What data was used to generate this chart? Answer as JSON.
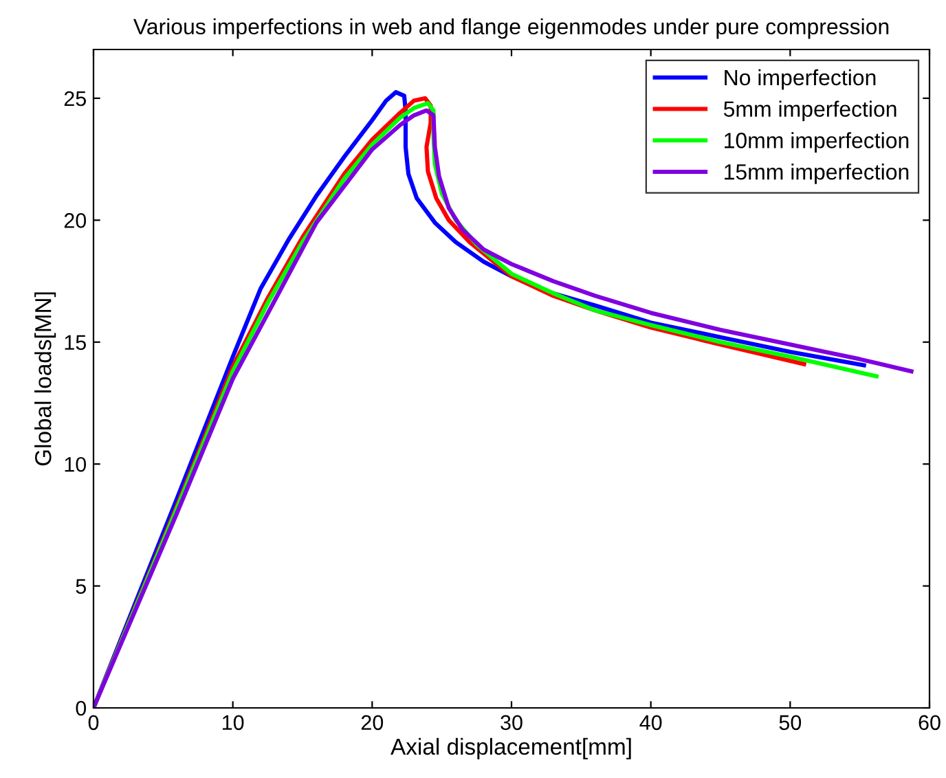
{
  "chart_data": {
    "type": "line",
    "title": "Various imperfections in web and flange eigenmodes under pure compression",
    "xlabel": "Axial displacement[mm]",
    "ylabel": "Global loads[MN]",
    "xlim": [
      0,
      60
    ],
    "ylim": [
      0,
      27
    ],
    "xticks": [
      0,
      10,
      20,
      30,
      40,
      50,
      60
    ],
    "yticks": [
      0,
      5,
      10,
      15,
      20,
      25
    ],
    "legend": "top right",
    "grid": false,
    "series": [
      {
        "name": "No imperfection",
        "color": "#0000ff",
        "x": [
          0,
          6,
          10,
          12,
          14,
          16,
          18,
          20,
          21,
          21.7,
          22.3,
          22.4,
          22.4,
          22.6,
          23.2,
          24.5,
          26,
          28,
          30,
          33,
          36,
          40,
          45,
          50,
          55.3
        ],
        "values": [
          0,
          8.6,
          14.4,
          17.2,
          19.2,
          21.0,
          22.6,
          24.1,
          24.9,
          25.25,
          25.1,
          24.5,
          23,
          21.9,
          20.9,
          19.9,
          19.1,
          18.3,
          17.7,
          17.0,
          16.5,
          15.8,
          15.2,
          14.6,
          14.05
        ]
      },
      {
        "name": "5mm imperfection",
        "color": "#ff0000",
        "x": [
          0,
          6,
          10,
          12.5,
          15,
          18,
          20,
          22,
          23,
          23.8,
          24.2,
          24.2,
          23.9,
          24.0,
          24.6,
          25.5,
          27,
          30,
          33,
          36,
          40,
          45,
          51
        ],
        "values": [
          0,
          8.3,
          14.0,
          16.8,
          19.3,
          21.9,
          23.3,
          24.4,
          24.9,
          25.0,
          24.7,
          24.0,
          23.0,
          22.0,
          20.9,
          20.0,
          19.1,
          17.7,
          16.9,
          16.3,
          15.6,
          14.9,
          14.1
        ]
      },
      {
        "name": "10mm imperfection",
        "color": "#00ff00",
        "x": [
          0,
          6,
          10,
          12.5,
          15,
          18,
          20,
          22,
          23,
          24,
          24.4,
          24.4,
          24.5,
          25,
          26,
          27.5,
          30,
          33,
          36,
          40,
          45,
          50,
          56.2
        ],
        "values": [
          0,
          8.2,
          13.8,
          16.6,
          19.1,
          21.7,
          23.1,
          24.2,
          24.6,
          24.8,
          24.5,
          23.5,
          22.3,
          21.1,
          20.0,
          19.0,
          17.8,
          17.0,
          16.3,
          15.7,
          15.0,
          14.4,
          13.6
        ]
      },
      {
        "name": "15mm imperfection",
        "color": "#8000e0",
        "x": [
          0,
          6,
          10,
          13,
          16,
          18,
          20,
          22,
          23,
          23.9,
          24.4,
          24.5,
          24.8,
          25.5,
          26.5,
          28,
          30,
          33,
          36,
          40,
          45,
          50,
          55,
          58.7
        ],
        "values": [
          0,
          8.0,
          13.5,
          16.7,
          19.9,
          21.4,
          22.9,
          23.9,
          24.3,
          24.5,
          24.3,
          23.0,
          21.8,
          20.5,
          19.6,
          18.8,
          18.2,
          17.5,
          16.9,
          16.2,
          15.5,
          14.9,
          14.3,
          13.8
        ]
      }
    ]
  }
}
